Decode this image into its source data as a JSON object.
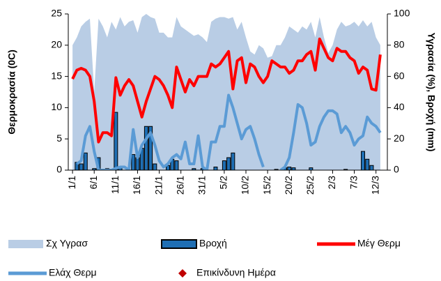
{
  "chart_data": {
    "type": "combo",
    "y_label": "Θερμοκρασία (0C)",
    "y2_label": "Υγρασία (%), Βροχή (mm)",
    "categories": [
      "1/1",
      null,
      null,
      null,
      null,
      "6/1",
      null,
      null,
      null,
      null,
      "11/1",
      null,
      null,
      null,
      null,
      "16/1",
      null,
      null,
      null,
      null,
      "21/1",
      null,
      null,
      null,
      null,
      "26/1",
      null,
      null,
      null,
      null,
      "31/1",
      null,
      null,
      null,
      null,
      "5/2",
      null,
      null,
      null,
      null,
      "10/2",
      null,
      null,
      null,
      null,
      "15/2",
      null,
      null,
      null,
      null,
      "20/2",
      null,
      null,
      null,
      null,
      "25/2",
      null,
      null,
      null,
      null,
      "2/3",
      null,
      null,
      null,
      null,
      "7/3",
      null,
      null,
      null,
      null,
      "12/3",
      null
    ],
    "ylim": [
      0,
      25
    ],
    "yticks": [
      0,
      5,
      10,
      15,
      20,
      25
    ],
    "y2lim": [
      0,
      100
    ],
    "y2ticks": [
      0,
      20,
      40,
      60,
      80,
      100
    ],
    "series": [
      {
        "name": "Σχ Υγρασ",
        "type": "area",
        "axis": "y2",
        "color": "#b9cde5",
        "values": [
          80,
          85,
          92,
          95,
          97,
          50,
          97,
          92,
          85,
          95,
          90,
          98,
          92,
          95,
          96,
          88,
          98,
          100,
          98,
          97,
          88,
          88,
          85,
          85,
          98,
          92,
          90,
          88,
          86,
          87,
          85,
          82,
          95,
          97,
          98,
          98,
          97,
          98,
          90,
          95,
          85,
          76,
          74,
          80,
          78,
          72,
          73,
          80,
          80,
          85,
          92,
          90,
          88,
          92,
          90,
          95,
          85,
          98,
          85,
          75,
          80,
          90,
          95,
          92,
          93,
          95,
          92,
          96,
          92,
          95,
          85,
          80
        ]
      },
      {
        "name": "Βροχή",
        "type": "bar",
        "axis": "y2",
        "color": "#1f6fb4",
        "values": [
          0,
          5,
          4,
          11,
          0,
          1,
          8,
          0,
          1,
          0,
          37,
          2,
          0,
          0,
          10,
          8,
          14,
          28,
          28,
          4,
          0,
          0,
          3,
          7,
          6,
          0,
          0,
          0,
          1,
          0,
          1,
          0,
          0,
          2,
          0,
          6,
          8,
          11,
          0,
          0,
          0,
          0,
          0,
          0,
          0,
          0,
          0,
          0.5,
          0,
          1.5,
          2,
          1.5,
          0,
          0,
          0,
          1.5,
          0,
          0,
          0,
          0,
          0,
          0,
          0,
          0.5,
          0,
          0,
          0,
          12,
          7,
          3,
          0,
          0
        ]
      },
      {
        "name": "Μέγ Θερμ",
        "type": "line",
        "color": "#ff0000",
        "values": [
          14.6,
          16,
          16.3,
          16,
          15,
          11,
          4.5,
          6,
          6,
          5.5,
          14.8,
          12,
          13.5,
          14.5,
          13.5,
          11,
          8.5,
          11,
          13,
          15,
          14.5,
          13.5,
          12,
          10,
          16.5,
          14.5,
          12.5,
          14.5,
          13.5,
          15,
          15,
          15,
          17,
          16.5,
          17,
          18,
          19,
          13,
          17.5,
          18,
          14,
          17,
          16.5,
          15,
          14,
          15,
          17.5,
          17,
          16.5,
          16.5,
          15.5,
          16,
          17.5,
          17.5,
          18.5,
          19,
          16,
          21,
          19.5,
          18,
          17.5,
          19.5,
          19,
          19,
          18,
          17.5,
          15.5,
          16.5,
          16,
          13,
          12.8,
          18.5
        ]
      },
      {
        "name": "Ελάχ Θερμ",
        "type": "line",
        "color": "#5b9bd5",
        "values": [
          null,
          1,
          1.5,
          5.5,
          7,
          3,
          0,
          0,
          0,
          0,
          0.3,
          0.5,
          0.5,
          0,
          6.5,
          2,
          4,
          5,
          6,
          4,
          1.5,
          0.5,
          1,
          2,
          2.5,
          1.8,
          4.5,
          1,
          1,
          5.5,
          0.5,
          0,
          4.5,
          4.5,
          7,
          7,
          12,
          10,
          7.5,
          5,
          6.5,
          7,
          5,
          2.5,
          0.5,
          null,
          null,
          null,
          0,
          0.5,
          2,
          6,
          10.5,
          10,
          7.5,
          4,
          4.5,
          7,
          8.5,
          9.5,
          9.5,
          9,
          6,
          7,
          6,
          4,
          5,
          5.5,
          8.5,
          7.5,
          7,
          6
        ]
      },
      {
        "name": "Επικίνδυνη Ημέρα",
        "type": "marker",
        "color": "#c00000",
        "values": [
          null,
          null,
          null,
          null,
          null,
          null,
          null,
          null,
          null,
          null,
          null,
          null,
          null,
          null,
          null,
          null,
          null,
          null,
          null,
          null,
          null,
          null,
          null,
          null,
          null,
          null,
          null,
          null,
          null,
          null,
          null,
          null,
          null,
          null,
          null,
          null,
          null,
          null,
          null,
          null,
          null,
          null,
          null,
          null,
          null,
          null,
          null,
          null,
          null,
          null,
          null,
          null,
          null,
          null,
          null,
          null,
          null,
          null,
          null,
          null,
          null,
          null,
          null,
          null,
          null,
          null,
          null,
          null,
          null,
          null,
          null,
          null
        ]
      }
    ]
  }
}
